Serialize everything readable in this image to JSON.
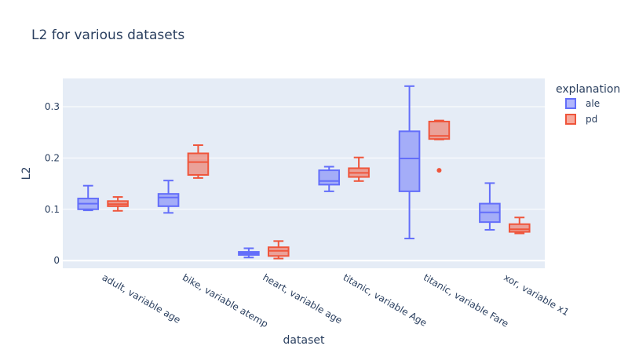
{
  "chart_data": {
    "type": "box",
    "title": "L2 for various datasets",
    "xlabel": "dataset",
    "ylabel": "L2",
    "ylim": [
      -0.015,
      0.355
    ],
    "yticks": [
      0,
      0.1,
      0.2,
      0.3
    ],
    "ytick_labels": [
      "0",
      "0.1",
      "0.2",
      "0.3"
    ],
    "grid": true,
    "legend_title": "explanation",
    "legend_position": "right",
    "categories": [
      "adult, variable age",
      "bike, variable atemp",
      "heart, variable age",
      "titanic, variable Age",
      "titanic, variable Fare",
      "xor, variable x1"
    ],
    "series": [
      {
        "name": "ale",
        "color": "#636efa",
        "fill": "rgba(99,110,250,0.5)",
        "boxes": [
          {
            "min": 0.098,
            "q1": 0.1,
            "median": 0.111,
            "q3": 0.121,
            "max": 0.146,
            "outliers": []
          },
          {
            "min": 0.093,
            "q1": 0.106,
            "median": 0.123,
            "q3": 0.13,
            "max": 0.156,
            "outliers": []
          },
          {
            "min": 0.006,
            "q1": 0.011,
            "median": 0.014,
            "q3": 0.017,
            "max": 0.024,
            "outliers": []
          },
          {
            "min": 0.135,
            "q1": 0.148,
            "median": 0.155,
            "q3": 0.176,
            "max": 0.183,
            "outliers": []
          },
          {
            "min": 0.043,
            "q1": 0.135,
            "median": 0.199,
            "q3": 0.252,
            "max": 0.34,
            "outliers": []
          },
          {
            "min": 0.06,
            "q1": 0.075,
            "median": 0.094,
            "q3": 0.111,
            "max": 0.151,
            "outliers": []
          }
        ]
      },
      {
        "name": "pd",
        "color": "#ef553b",
        "fill": "rgba(239,85,59,0.5)",
        "boxes": [
          {
            "min": 0.097,
            "q1": 0.106,
            "median": 0.11,
            "q3": 0.116,
            "max": 0.124,
            "outliers": []
          },
          {
            "min": 0.161,
            "q1": 0.167,
            "median": 0.192,
            "q3": 0.209,
            "max": 0.225,
            "outliers": []
          },
          {
            "min": 0.004,
            "q1": 0.009,
            "median": 0.019,
            "q3": 0.026,
            "max": 0.038,
            "outliers": []
          },
          {
            "min": 0.155,
            "q1": 0.163,
            "median": 0.171,
            "q3": 0.18,
            "max": 0.201,
            "outliers": []
          },
          {
            "min": 0.236,
            "q1": 0.237,
            "median": 0.243,
            "q3": 0.271,
            "max": 0.273,
            "outliers": [
              0.176
            ]
          },
          {
            "min": 0.053,
            "q1": 0.056,
            "median": 0.061,
            "q3": 0.071,
            "max": 0.084,
            "outliers": []
          }
        ]
      }
    ]
  }
}
